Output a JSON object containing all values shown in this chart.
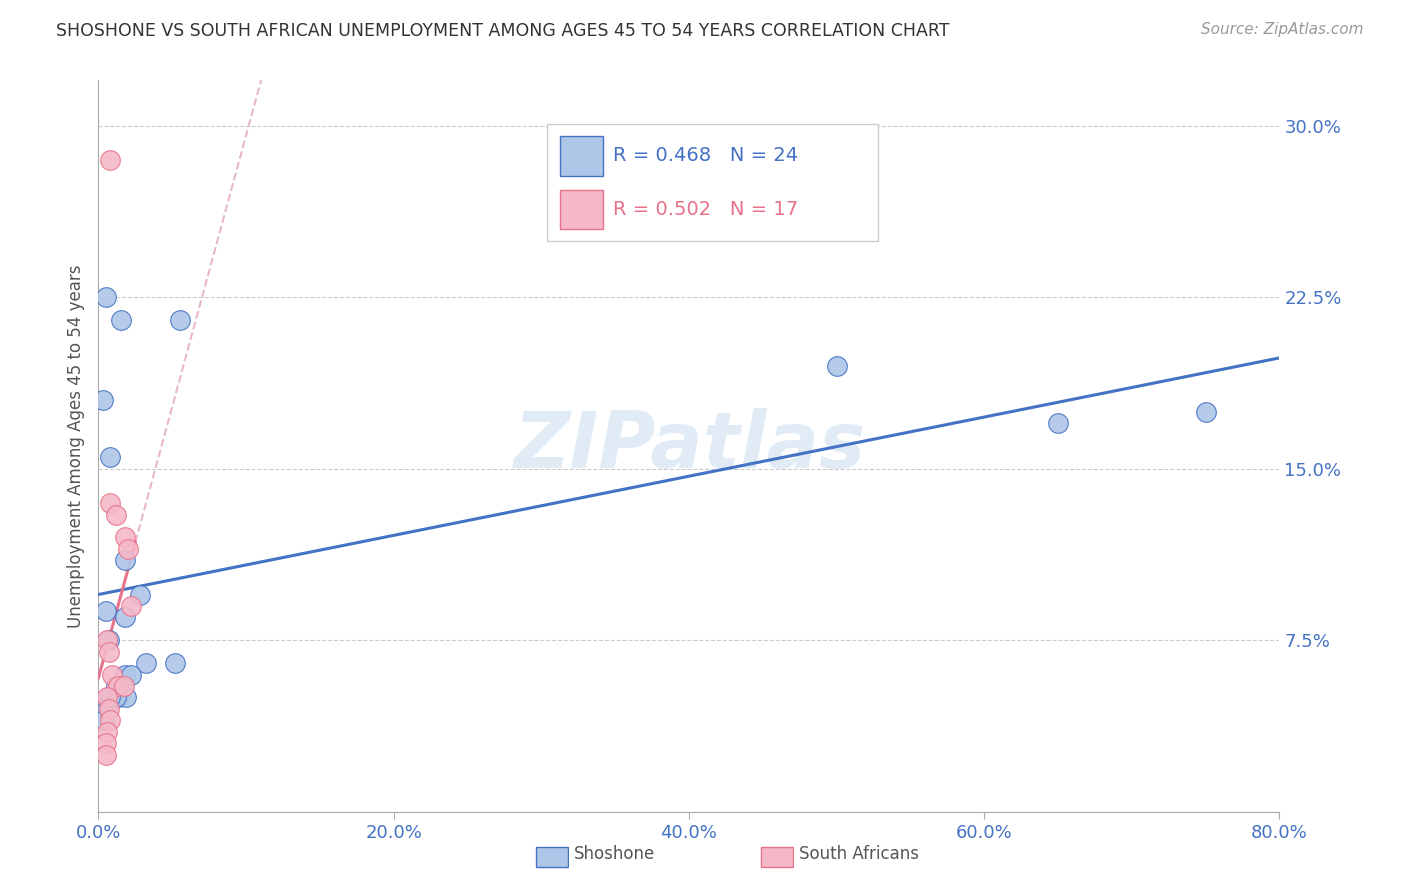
{
  "title": "SHOSHONE VS SOUTH AFRICAN UNEMPLOYMENT AMONG AGES 45 TO 54 YEARS CORRELATION CHART",
  "source": "Source: ZipAtlas.com",
  "ylabel": "Unemployment Among Ages 45 to 54 years",
  "xlim": [
    0.0,
    0.8
  ],
  "ylim": [
    0.0,
    0.32
  ],
  "yticks": [
    0.075,
    0.15,
    0.225,
    0.3
  ],
  "ytick_labels": [
    "7.5%",
    "15.0%",
    "22.5%",
    "30.0%"
  ],
  "xticks": [
    0.0,
    0.2,
    0.4,
    0.6,
    0.8
  ],
  "xtick_labels": [
    "0.0%",
    "20.0%",
    "40.0%",
    "60.0%",
    "80.0%"
  ],
  "shoshone_color": "#AEC6E8",
  "sa_color": "#F4B8C8",
  "shoshone_R": 0.468,
  "shoshone_N": 24,
  "sa_R": 0.502,
  "sa_N": 17,
  "shoshone_line_color": "#4472C4",
  "sa_line_color": "#E8728A",
  "sa_dash_color": "#E8B8C8",
  "watermark": "ZIPatlas",
  "shoshone_x": [
    0.005,
    0.015,
    0.055,
    0.003,
    0.008,
    0.018,
    0.028,
    0.005,
    0.007,
    0.032,
    0.052,
    0.018,
    0.022,
    0.012,
    0.013,
    0.019,
    0.5,
    0.65,
    0.75,
    0.018,
    0.012,
    0.008,
    0.006,
    0.004
  ],
  "shoshone_y": [
    0.225,
    0.215,
    0.215,
    0.18,
    0.155,
    0.11,
    0.095,
    0.088,
    0.075,
    0.065,
    0.065,
    0.06,
    0.06,
    0.055,
    0.05,
    0.05,
    0.195,
    0.17,
    0.175,
    0.085,
    0.05,
    0.05,
    0.045,
    0.04
  ],
  "sa_x": [
    0.008,
    0.008,
    0.012,
    0.018,
    0.02,
    0.022,
    0.006,
    0.007,
    0.009,
    0.013,
    0.017,
    0.006,
    0.007,
    0.008,
    0.006,
    0.005,
    0.005
  ],
  "sa_y": [
    0.285,
    0.135,
    0.13,
    0.12,
    0.115,
    0.09,
    0.075,
    0.07,
    0.06,
    0.055,
    0.055,
    0.05,
    0.045,
    0.04,
    0.035,
    0.03,
    0.025
  ],
  "grid_color": "#CCCCCC",
  "title_color": "#333333",
  "tick_color": "#4472C4"
}
